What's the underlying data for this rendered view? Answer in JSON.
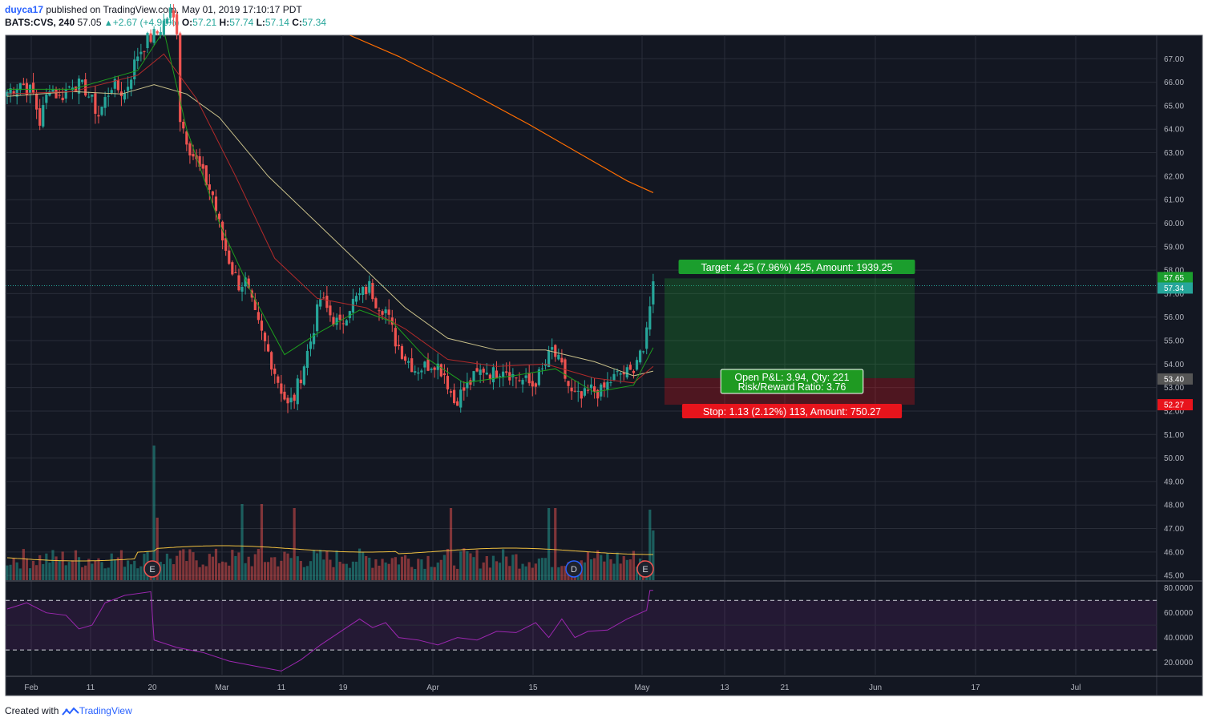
{
  "header": {
    "author": "duyca17",
    "published": "published on TradingView.com, May 01, 2019 17:10:17 PDT",
    "symbol": "BATS:CVS, 240",
    "last": "57.05",
    "change": "+2.67 (+4.91%)",
    "o_label": "O:",
    "o": "57.21",
    "h_label": "H:",
    "h": "57.74",
    "l_label": "L:",
    "l": "57.14",
    "c_label": "C:",
    "c": "57.34"
  },
  "footer": {
    "created_with": "Created with",
    "brand": "TradingView"
  },
  "colors": {
    "background": "#131722",
    "grid": "#2a2e39",
    "up": "#26a69a",
    "down": "#ef5350",
    "ema_fast": "#1e9e1e",
    "ema_mid": "#b02a2a",
    "sma_50": "#c9c08a",
    "sma_200": "#ff6d00",
    "rsi": "#9c27b0",
    "target": "#1b9e2d",
    "stop": "#e8141c"
  },
  "chart_data": {
    "type": "candlestick",
    "price_axis": {
      "ticks": [
        "67.00",
        "66.00",
        "65.00",
        "64.00",
        "63.00",
        "62.00",
        "61.00",
        "60.00",
        "59.00",
        "58.00",
        "57.00",
        "56.00",
        "55.00",
        "54.00",
        "53.00",
        "52.00",
        "51.00",
        "50.00",
        "49.00",
        "48.00",
        "47.00",
        "46.00",
        "45.00"
      ],
      "range": [
        44.8,
        68.0
      ]
    },
    "time_axis": {
      "ticks": [
        "Feb",
        "11",
        "20",
        "Mar",
        "11",
        "19",
        "Apr",
        "15",
        "May",
        "13",
        "21",
        "Jun",
        "17",
        "Jul"
      ]
    },
    "rsi_axis": {
      "ticks": [
        "80.0000",
        "60.0000",
        "40.0000",
        "20.0000"
      ],
      "range": [
        10,
        85
      ],
      "upper": 70,
      "lower": 30
    },
    "price_labels": [
      {
        "value": 57.65,
        "text": "57.65",
        "kind": "target"
      },
      {
        "value": 57.34,
        "text": "57.34",
        "kind": "last"
      },
      {
        "value": 53.4,
        "text": "53.40",
        "kind": "entry"
      },
      {
        "value": 52.27,
        "text": "52.27",
        "kind": "stop"
      }
    ],
    "position": {
      "entry": 53.4,
      "target": 57.65,
      "stop": 52.27,
      "target_text": "Target: 4.25 (7.96%) 425, Amount: 1939.25",
      "pnl_text": "Open P&L: 3.94, Qty: 221",
      "rr_text": "Risk/Reward Ratio: 3.76",
      "stop_text": "Stop: 1.13 (2.12%) 113, Amount: 750.27"
    },
    "events": [
      {
        "letter": "E",
        "date": "Feb 20",
        "kind": "earnings"
      },
      {
        "letter": "D",
        "date": "Apr 22",
        "kind": "dividend"
      },
      {
        "letter": "E",
        "date": "May 01",
        "kind": "earnings"
      }
    ],
    "price_path": [
      [
        0,
        65.6
      ],
      [
        4,
        66.0
      ],
      [
        8,
        65.5
      ],
      [
        10,
        64.3
      ],
      [
        13,
        65.9
      ],
      [
        16,
        65.3
      ],
      [
        20,
        66.0
      ],
      [
        24,
        65.7
      ],
      [
        28,
        64.6
      ],
      [
        32,
        65.9
      ],
      [
        36,
        65.5
      ],
      [
        40,
        67.2
      ],
      [
        43,
        67.8
      ],
      [
        46,
        68.1
      ],
      [
        50,
        69.0
      ],
      [
        52,
        68.3
      ],
      [
        53,
        64.5
      ],
      [
        56,
        63.2
      ],
      [
        60,
        62.0
      ],
      [
        63,
        61.2
      ],
      [
        66,
        59.3
      ],
      [
        69,
        58.0
      ],
      [
        71,
        57.4
      ],
      [
        73,
        57.5
      ],
      [
        76,
        56.0
      ],
      [
        80,
        54.5
      ],
      [
        83,
        53.3
      ],
      [
        86,
        52.2
      ],
      [
        88,
        52.6
      ],
      [
        91,
        54.0
      ],
      [
        93,
        55.0
      ],
      [
        96,
        56.8
      ],
      [
        99,
        56.1
      ],
      [
        102,
        55.6
      ],
      [
        105,
        56.5
      ],
      [
        108,
        56.9
      ],
      [
        111,
        57.3
      ],
      [
        113,
        56.7
      ],
      [
        116,
        56.3
      ],
      [
        119,
        55.0
      ],
      [
        122,
        54.3
      ],
      [
        125,
        53.8
      ],
      [
        128,
        53.9
      ],
      [
        131,
        54.1
      ],
      [
        134,
        53.6
      ],
      [
        137,
        52.4
      ],
      [
        140,
        52.9
      ],
      [
        143,
        53.4
      ],
      [
        146,
        53.8
      ],
      [
        149,
        53.6
      ],
      [
        152,
        53.9
      ],
      [
        155,
        53.5
      ],
      [
        158,
        53.3
      ],
      [
        161,
        53.1
      ],
      [
        164,
        53.7
      ],
      [
        167,
        54.6
      ],
      [
        170,
        53.8
      ],
      [
        173,
        52.7
      ],
      [
        176,
        52.5
      ],
      [
        179,
        52.9
      ],
      [
        182,
        52.8
      ],
      [
        185,
        53.3
      ],
      [
        188,
        53.6
      ],
      [
        191,
        53.6
      ],
      [
        194,
        54.6
      ],
      [
        195,
        54.2
      ],
      [
        197,
        56.7
      ],
      [
        198,
        57.4
      ]
    ],
    "ema_fast": [
      [
        0,
        65.7
      ],
      [
        20,
        65.7
      ],
      [
        40,
        66.5
      ],
      [
        48,
        68.2
      ],
      [
        55,
        64.0
      ],
      [
        65,
        60.0
      ],
      [
        75,
        57.0
      ],
      [
        85,
        54.4
      ],
      [
        95,
        55.3
      ],
      [
        108,
        56.3
      ],
      [
        118,
        55.8
      ],
      [
        128,
        54.3
      ],
      [
        140,
        53.2
      ],
      [
        155,
        53.5
      ],
      [
        168,
        53.8
      ],
      [
        180,
        52.8
      ],
      [
        192,
        53.1
      ],
      [
        198,
        54.7
      ]
    ],
    "ema_mid": [
      [
        0,
        65.5
      ],
      [
        20,
        65.6
      ],
      [
        40,
        66.3
      ],
      [
        48,
        67.2
      ],
      [
        58,
        65.3
      ],
      [
        70,
        62.0
      ],
      [
        82,
        58.5
      ],
      [
        95,
        56.8
      ],
      [
        110,
        56.4
      ],
      [
        122,
        55.5
      ],
      [
        135,
        54.2
      ],
      [
        150,
        53.9
      ],
      [
        165,
        54.0
      ],
      [
        180,
        53.4
      ],
      [
        192,
        53.2
      ],
      [
        198,
        53.9
      ]
    ],
    "sma_50": [
      [
        0,
        65.4
      ],
      [
        20,
        65.6
      ],
      [
        35,
        65.5
      ],
      [
        45,
        65.9
      ],
      [
        55,
        65.5
      ],
      [
        65,
        64.5
      ],
      [
        80,
        62.0
      ],
      [
        95,
        60.0
      ],
      [
        110,
        58.0
      ],
      [
        122,
        56.4
      ],
      [
        135,
        55.1
      ],
      [
        150,
        54.6
      ],
      [
        165,
        54.6
      ],
      [
        180,
        54.1
      ],
      [
        192,
        53.5
      ],
      [
        198,
        53.7
      ]
    ],
    "sma_200": [
      [
        105,
        68.0
      ],
      [
        120,
        67.1
      ],
      [
        140,
        65.7
      ],
      [
        160,
        64.2
      ],
      [
        175,
        63.0
      ],
      [
        190,
        61.8
      ],
      [
        198,
        61.3
      ]
    ],
    "rsi": [
      [
        0,
        63
      ],
      [
        6,
        68
      ],
      [
        12,
        60
      ],
      [
        18,
        58
      ],
      [
        22,
        47
      ],
      [
        26,
        50
      ],
      [
        30,
        68
      ],
      [
        36,
        74
      ],
      [
        44,
        77
      ],
      [
        45,
        38
      ],
      [
        52,
        32
      ],
      [
        60,
        28
      ],
      [
        68,
        21
      ],
      [
        76,
        17
      ],
      [
        84,
        13
      ],
      [
        90,
        22
      ],
      [
        96,
        34
      ],
      [
        104,
        48
      ],
      [
        108,
        55
      ],
      [
        112,
        48
      ],
      [
        116,
        52
      ],
      [
        120,
        40
      ],
      [
        126,
        38
      ],
      [
        132,
        34
      ],
      [
        138,
        40
      ],
      [
        144,
        38
      ],
      [
        150,
        45
      ],
      [
        156,
        44
      ],
      [
        162,
        52
      ],
      [
        166,
        40
      ],
      [
        170,
        55
      ],
      [
        174,
        40
      ],
      [
        178,
        45
      ],
      [
        184,
        46
      ],
      [
        190,
        55
      ],
      [
        196,
        62
      ],
      [
        197,
        78
      ],
      [
        198,
        78
      ]
    ],
    "volume": "relative bars under price; spikes at Feb 20 earnings and May 01"
  }
}
